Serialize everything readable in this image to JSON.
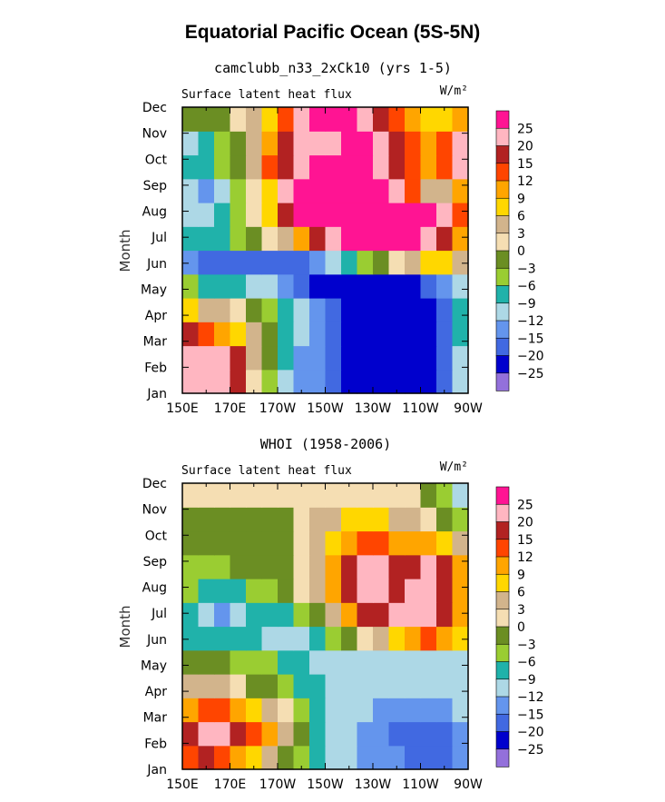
{
  "figure": {
    "title": "Equatorial Pacific Ocean (5S-5N)"
  },
  "chart_data": [
    {
      "type": "heatmap",
      "title": "camclubb_n33_2xCk10 (yrs 1-5)",
      "subtitle": "Surface latent heat flux",
      "units": "W/m²",
      "ylabel": "Month",
      "x_ticks": [
        "150E",
        "170E",
        "170W",
        "150W",
        "130W",
        "110W",
        "90W"
      ],
      "y_ticks": [
        "Jan",
        "Feb",
        "Mar",
        "Apr",
        "May",
        "Jun",
        "Jul",
        "Aug",
        "Sep",
        "Oct",
        "Nov",
        "Dec"
      ],
      "contour_levels": [
        -25,
        -20,
        -15,
        -12,
        -9,
        -6,
        -3,
        0,
        3,
        6,
        9,
        12,
        15,
        20,
        25
      ],
      "colors": [
        "#9370db",
        "#0000cd",
        "#4169e1",
        "#6495ed",
        "#add8e6",
        "#20b2aa",
        "#9acd32",
        "#6b8e23",
        "#f5deb3",
        "#d2b48c",
        "#ffd700",
        "#ffa500",
        "#ff4500",
        "#b22222",
        "#ffb6c1",
        "#ff1493"
      ],
      "grid": [
        [
          20,
          20,
          20,
          15,
          0,
          -6,
          -12,
          -15,
          -15,
          -20,
          -25,
          -25,
          -25,
          -25,
          -25,
          -25,
          -20,
          -12
        ],
        [
          20,
          20,
          20,
          15,
          3,
          -3,
          -9,
          -15,
          -15,
          -20,
          -25,
          -25,
          -25,
          -25,
          -25,
          -25,
          -20,
          -12
        ],
        [
          15,
          12,
          9,
          6,
          3,
          -3,
          -9,
          -12,
          -15,
          -20,
          -25,
          -25,
          -25,
          -25,
          -25,
          -25,
          -20,
          -9
        ],
        [
          6,
          3,
          3,
          0,
          -3,
          -6,
          -9,
          -12,
          -15,
          -20,
          -25,
          -25,
          -25,
          -25,
          -25,
          -25,
          -20,
          -9
        ],
        [
          -6,
          -9,
          -9,
          -9,
          -12,
          -12,
          -15,
          -20,
          -25,
          -25,
          -25,
          -25,
          -25,
          -25,
          -25,
          -20,
          -15,
          -12
        ],
        [
          -15,
          -20,
          -20,
          -20,
          -20,
          -20,
          -20,
          -20,
          -15,
          -12,
          -9,
          -6,
          -3,
          0,
          3,
          6,
          6,
          3
        ],
        [
          -9,
          -9,
          -9,
          -6,
          -3,
          0,
          3,
          9,
          15,
          20,
          25,
          25,
          25,
          25,
          25,
          20,
          15,
          9
        ],
        [
          -12,
          -12,
          -9,
          -6,
          0,
          6,
          15,
          25,
          25,
          25,
          25,
          25,
          25,
          25,
          25,
          25,
          20,
          12
        ],
        [
          -12,
          -15,
          -12,
          -6,
          0,
          6,
          20,
          25,
          25,
          25,
          25,
          25,
          25,
          20,
          12,
          3,
          3,
          9
        ],
        [
          -9,
          -9,
          -6,
          -3,
          3,
          12,
          15,
          20,
          25,
          25,
          25,
          25,
          20,
          15,
          12,
          9,
          12,
          20
        ],
        [
          -12,
          -9,
          -6,
          -3,
          3,
          9,
          15,
          20,
          20,
          20,
          25,
          25,
          20,
          15,
          12,
          9,
          12,
          20
        ],
        [
          -3,
          -3,
          -3,
          0,
          3,
          6,
          12,
          20,
          25,
          25,
          25,
          20,
          15,
          12,
          9,
          6,
          6,
          9
        ]
      ]
    },
    {
      "type": "heatmap",
      "title": "WHOI (1958-2006)",
      "subtitle": "Surface latent heat flux",
      "units": "W/m²",
      "ylabel": "Month",
      "x_ticks": [
        "150E",
        "170E",
        "170W",
        "150W",
        "130W",
        "110W",
        "90W"
      ],
      "y_ticks": [
        "Jan",
        "Feb",
        "Mar",
        "Apr",
        "May",
        "Jun",
        "Jul",
        "Aug",
        "Sep",
        "Oct",
        "Nov",
        "Dec"
      ],
      "contour_levels": [
        -25,
        -20,
        -15,
        -12,
        -9,
        -6,
        -3,
        0,
        3,
        6,
        9,
        12,
        15,
        20,
        25
      ],
      "colors": [
        "#9370db",
        "#0000cd",
        "#4169e1",
        "#6495ed",
        "#add8e6",
        "#20b2aa",
        "#9acd32",
        "#6b8e23",
        "#f5deb3",
        "#d2b48c",
        "#ffd700",
        "#ffa500",
        "#ff4500",
        "#b22222",
        "#ffb6c1",
        "#ff1493"
      ],
      "grid": [
        [
          12,
          15,
          12,
          9,
          6,
          3,
          -3,
          -6,
          -9,
          -12,
          -12,
          -15,
          -15,
          -15,
          -20,
          -20,
          -20,
          -15
        ],
        [
          15,
          20,
          20,
          15,
          12,
          9,
          3,
          -3,
          -9,
          -12,
          -12,
          -15,
          -15,
          -20,
          -20,
          -20,
          -20,
          -15
        ],
        [
          9,
          12,
          12,
          9,
          6,
          3,
          0,
          -6,
          -9,
          -12,
          -12,
          -12,
          -15,
          -15,
          -15,
          -15,
          -15,
          -12
        ],
        [
          3,
          3,
          3,
          0,
          -3,
          -3,
          -6,
          -9,
          -9,
          -12,
          -12,
          -12,
          -12,
          -12,
          -12,
          -12,
          -12,
          -12
        ],
        [
          -3,
          -3,
          -3,
          -6,
          -6,
          -6,
          -9,
          -9,
          -12,
          -12,
          -12,
          -12,
          -12,
          -12,
          -12,
          -12,
          -12,
          -12
        ],
        [
          -9,
          -9,
          -9,
          -9,
          -9,
          -12,
          -12,
          -12,
          -9,
          -6,
          -3,
          0,
          3,
          6,
          9,
          12,
          9,
          6
        ],
        [
          -9,
          -12,
          -15,
          -12,
          -9,
          -9,
          -9,
          -6,
          -3,
          3,
          9,
          15,
          15,
          20,
          20,
          20,
          15,
          9
        ],
        [
          -6,
          -9,
          -9,
          -9,
          -6,
          -6,
          -3,
          0,
          3,
          9,
          15,
          20,
          20,
          15,
          20,
          20,
          15,
          9
        ],
        [
          -6,
          -6,
          -6,
          -3,
          -3,
          -3,
          -3,
          0,
          3,
          9,
          15,
          20,
          20,
          15,
          15,
          20,
          15,
          9
        ],
        [
          -3,
          -3,
          -3,
          -3,
          -3,
          -3,
          -3,
          0,
          3,
          6,
          9,
          12,
          12,
          9,
          9,
          9,
          6,
          3
        ],
        [
          -3,
          -3,
          -3,
          -3,
          -3,
          -3,
          -3,
          0,
          3,
          3,
          6,
          6,
          6,
          3,
          3,
          0,
          -3,
          -6
        ],
        [
          0,
          0,
          0,
          0,
          0,
          0,
          0,
          0,
          0,
          0,
          0,
          0,
          0,
          0,
          0,
          -3,
          -6,
          -12
        ]
      ]
    }
  ],
  "colorbar": {
    "labels": [
      "25",
      "20",
      "15",
      "12",
      "9",
      "6",
      "3",
      "0",
      "−3",
      "−6",
      "−9",
      "−12",
      "−15",
      "−20",
      "−25"
    ]
  }
}
